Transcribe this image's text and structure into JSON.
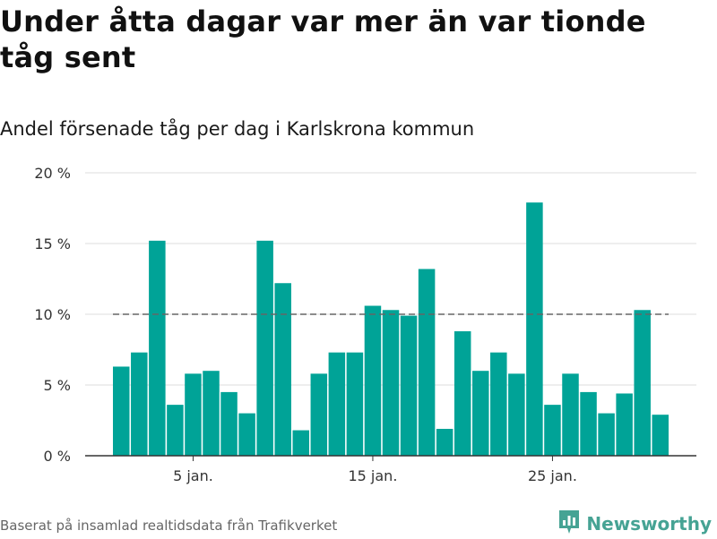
{
  "title": "Under åtta dagar var mer än var tionde tåg sent",
  "subtitle": "Andel försenade tåg per dag i Karlskrona kommun",
  "source": "Baserat på insamlad realtidsdata från Trafikverket",
  "brand": {
    "name": "Newsworthy",
    "icon": "newsworthy-logo-icon",
    "color": "#46a394"
  },
  "colors": {
    "bar": "#00a397",
    "reference_line": "#666666",
    "grid": "#dddddd",
    "axis": "#333333"
  },
  "chart_data": {
    "type": "bar",
    "x": [
      "1 jan.",
      "2 jan.",
      "3 jan.",
      "4 jan.",
      "5 jan.",
      "6 jan.",
      "7 jan.",
      "8 jan.",
      "9 jan.",
      "10 jan.",
      "11 jan.",
      "12 jan.",
      "13 jan.",
      "14 jan.",
      "15 jan.",
      "16 jan.",
      "17 jan.",
      "18 jan.",
      "19 jan.",
      "20 jan.",
      "21 jan.",
      "22 jan.",
      "23 jan.",
      "24 jan.",
      "25 jan.",
      "26 jan.",
      "27 jan.",
      "28 jan.",
      "29 jan.",
      "30 jan.",
      "31 jan."
    ],
    "values": [
      6.3,
      7.3,
      15.2,
      3.6,
      5.8,
      6.0,
      4.5,
      3.0,
      15.2,
      12.2,
      1.8,
      5.8,
      7.3,
      7.3,
      10.6,
      10.3,
      9.9,
      13.2,
      1.9,
      8.8,
      6.0,
      7.3,
      5.8,
      17.9,
      3.6,
      5.8,
      4.5,
      3.0,
      4.4,
      10.3,
      2.9
    ],
    "unit": "%",
    "ylim": [
      0,
      20
    ],
    "yticks": [
      0,
      5,
      10,
      15,
      20
    ],
    "ytick_labels": [
      "0 %",
      "5 %",
      "10 %",
      "15 %",
      "20 %"
    ],
    "xtick_labels": [
      {
        "label": "5 jan.",
        "index": 4
      },
      {
        "label": "15 jan.",
        "index": 14
      },
      {
        "label": "25 jan.",
        "index": 24
      }
    ],
    "reference_line": {
      "value": 10,
      "style": "dashed"
    },
    "grid": true,
    "legend": "none",
    "title": "Under åtta dagar var mer än var tionde tåg sent",
    "subtitle": "Andel försenade tåg per dag i Karlskrona kommun",
    "xlabel": "",
    "ylabel": ""
  }
}
